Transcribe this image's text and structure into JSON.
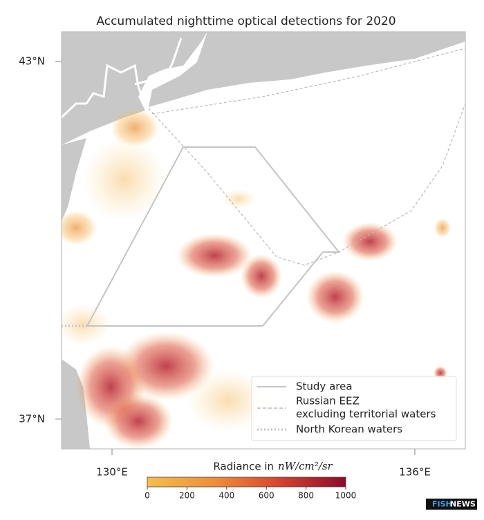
{
  "map": {
    "title": "Accumulated nighttime optical detections for 2020",
    "xlim": [
      129,
      137
    ],
    "ylim": [
      36.5,
      43.5
    ],
    "xticks": [
      {
        "value": 130,
        "label": "130°E"
      },
      {
        "value": 136,
        "label": "136°E"
      }
    ],
    "yticks": [
      {
        "value": 43,
        "label": "43°N"
      },
      {
        "value": 37,
        "label": "37°N"
      }
    ],
    "colorbar": {
      "label": "Radiance in",
      "unit": "nW/cm²/sr",
      "lim": [
        0,
        1000
      ],
      "ticks": [
        0,
        200,
        400,
        600,
        800,
        1000
      ]
    },
    "legend": [
      {
        "label": [
          "Study area"
        ]
      },
      {
        "label": [
          "Russian EEZ",
          "excluding territorial waters"
        ]
      },
      {
        "label": [
          "North Korean waters"
        ]
      }
    ]
  },
  "logo": {
    "part1": "FISH",
    "part2": "NEWS"
  }
}
